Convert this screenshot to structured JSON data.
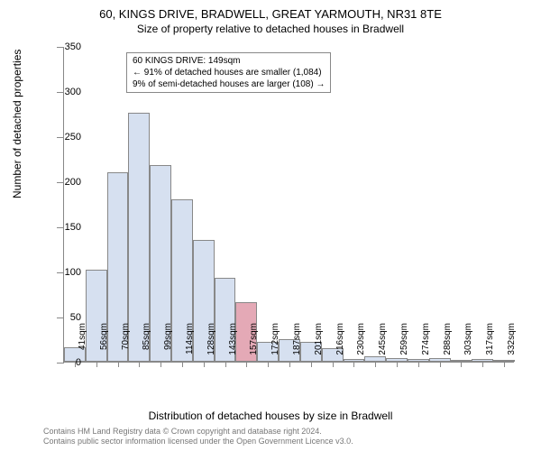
{
  "title_main": "60, KINGS DRIVE, BRADWELL, GREAT YARMOUTH, NR31 8TE",
  "title_sub": "Size of property relative to detached houses in Bradwell",
  "y_axis_title": "Number of detached properties",
  "x_axis_title": "Distribution of detached houses by size in Bradwell",
  "info_box": {
    "line1": "60 KINGS DRIVE: 149sqm",
    "line2": "← 91% of detached houses are smaller (1,084)",
    "line3": "9% of semi-detached houses are larger (108) →"
  },
  "footer": {
    "line1": "Contains HM Land Registry data © Crown copyright and database right 2024.",
    "line2": "Contains public sector information licensed under the Open Government Licence v3.0."
  },
  "chart": {
    "type": "histogram",
    "ylim": [
      0,
      350
    ],
    "ytick_step": 50,
    "bar_color": "#d6e0f0",
    "highlight_color": "#e4a9b6",
    "border_color": "#888888",
    "background_color": "#ffffff",
    "x_labels": [
      "41sqm",
      "56sqm",
      "70sqm",
      "85sqm",
      "99sqm",
      "114sqm",
      "128sqm",
      "143sqm",
      "157sqm",
      "172sqm",
      "187sqm",
      "201sqm",
      "216sqm",
      "230sqm",
      "245sqm",
      "259sqm",
      "274sqm",
      "288sqm",
      "303sqm",
      "317sqm",
      "332sqm"
    ],
    "values": [
      16,
      102,
      210,
      276,
      218,
      180,
      135,
      93,
      66,
      22,
      25,
      22,
      15,
      3,
      6,
      4,
      3,
      4,
      1,
      3,
      2
    ],
    "highlight_index": 8
  }
}
